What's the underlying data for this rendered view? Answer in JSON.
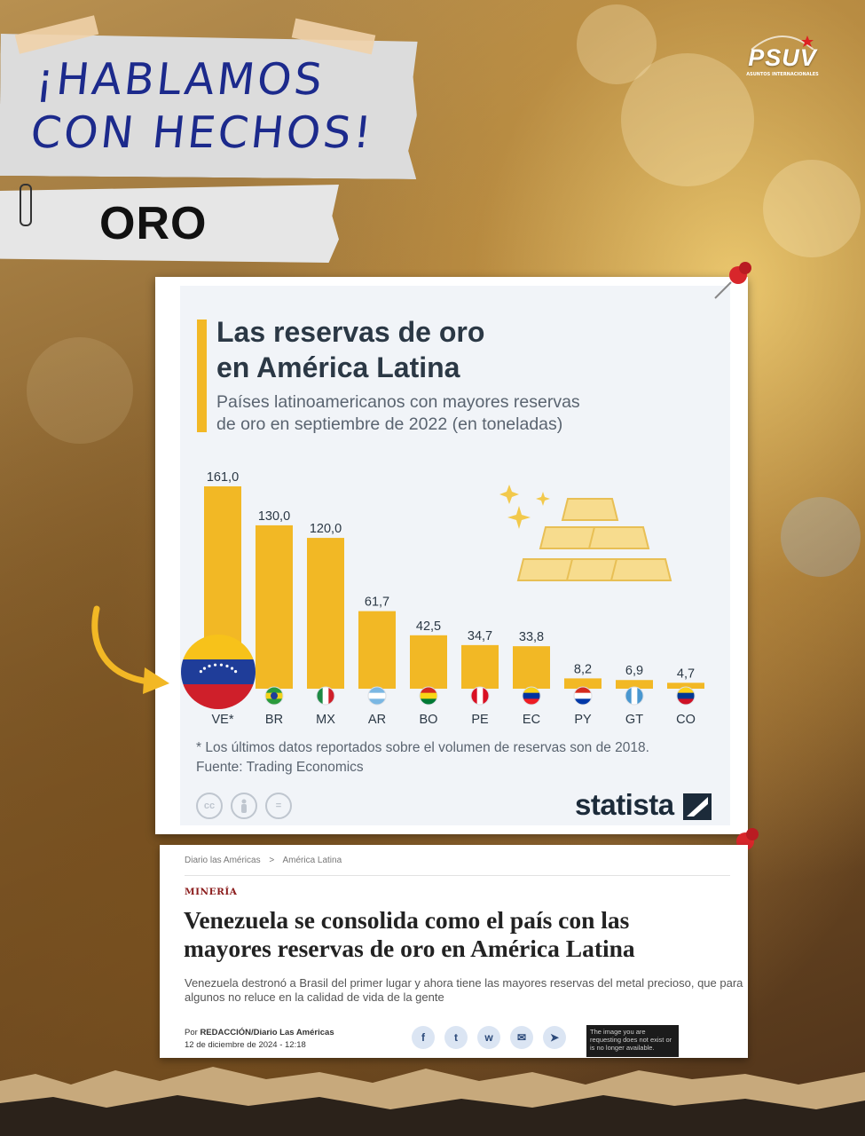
{
  "poster": {
    "slogan_line1": "¡HABLAMOS",
    "slogan_line2": "CON HECHOS!",
    "topic": "ORO",
    "logo_name": "PSUV",
    "logo_sub": "ASUNTOS INTERNACIONALES"
  },
  "chart_data": {
    "type": "bar",
    "title": "Las reservas de oro en América Latina",
    "title_line1": "Las reservas de oro",
    "title_line2": "en América Latina",
    "subtitle_line1": "Países latinoamericanos con mayores reservas",
    "subtitle_line2": "de oro en septiembre de 2022 (en toneladas)",
    "categories": [
      "VE*",
      "BR",
      "MX",
      "AR",
      "BO",
      "PE",
      "EC",
      "PY",
      "GT",
      "CO"
    ],
    "values": [
      161.0,
      130.0,
      120.0,
      61.7,
      42.5,
      34.7,
      33.8,
      8.2,
      6.9,
      4.7
    ],
    "value_labels": [
      "161,0",
      "130,0",
      "120,0",
      "61,7",
      "42,5",
      "34,7",
      "33,8",
      "8,2",
      "6,9",
      "4,7"
    ],
    "ylim": [
      0,
      161
    ],
    "bar_color": "#f2b825",
    "grid": false,
    "footnote": "* Los últimos datos reportados sobre el volumen de reservas son de 2018.",
    "source": "Fuente: Trading Economics",
    "brand": "statista",
    "license_icons": [
      "cc",
      "person",
      "="
    ]
  },
  "article": {
    "breadcrumb": [
      "Diario las Américas",
      ">",
      "América Latina"
    ],
    "section": "MINERÍA",
    "headline_line1": "Venezuela se consolida como el país con las",
    "headline_line2": "mayores reservas de oro en América Latina",
    "summary": "Venezuela destronó a Brasil del primer lugar y ahora tiene las mayores reservas del metal precioso, que para algunos no reluce en la calidad de vida de la gente",
    "byline_prefix": "Por ",
    "byline_author": "REDACCIÓN/Diario Las Américas",
    "date": "12 de diciembre de 2024 - 12:18",
    "share_icons": [
      "facebook-icon",
      "twitter-icon",
      "whatsapp-icon",
      "email-icon",
      "telegram-icon"
    ],
    "share_glyphs": [
      "f",
      "t",
      "w",
      "✉",
      "➤"
    ],
    "image_missing_text": "The image you are requesting does not exist or is no longer available."
  },
  "colors": {
    "slogan": "#1c2a8c",
    "chart_title": "#2b3845",
    "bar": "#f2b825",
    "headline": "#222222",
    "section": "#8b1c1c"
  }
}
